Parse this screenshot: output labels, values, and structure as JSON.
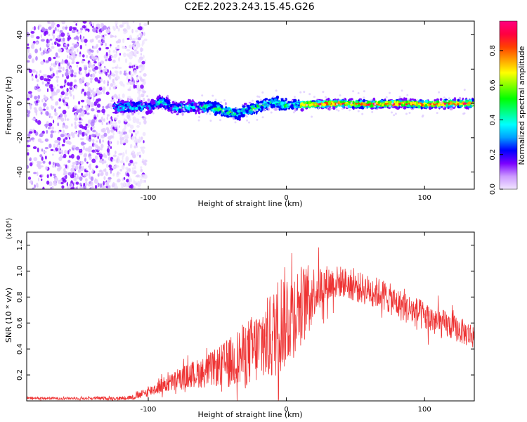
{
  "figure": {
    "title": "C2E2.2023.243.15.45.G26"
  },
  "chart_data": [
    {
      "type": "heatmap",
      "title": "C2E2.2023.243.15.45.G26",
      "xlabel": "Height of straight line (km)",
      "ylabel": "Frequency (Hz)",
      "xlim": [
        -188,
        136
      ],
      "ylim": [
        -50,
        48
      ],
      "x_ticks": [
        "-100",
        "0",
        "100"
      ],
      "y_ticks": [
        "-40",
        "-20",
        "0",
        "20",
        "40"
      ],
      "noise_region_x": [
        -188,
        -110
      ],
      "signal_start_x": -125,
      "signal_track": {
        "x": [
          -125,
          -100,
          -90,
          -80,
          -70,
          -60,
          -50,
          -40,
          -35,
          -30,
          -20,
          -10,
          0,
          20,
          40,
          60,
          80,
          100,
          120,
          136
        ],
        "y": [
          -2,
          -2,
          1,
          -3,
          -2,
          -2,
          -3,
          -5,
          -6,
          -4,
          -2,
          1,
          -1,
          -0.5,
          0,
          -0.5,
          0,
          -0.5,
          0,
          0
        ]
      },
      "colorbar": {
        "label": "Normalized spectral amplitude",
        "range": [
          0.0,
          0.97
        ],
        "ticks": [
          "0.0",
          "0.2",
          "0.4",
          "0.6",
          "0.8"
        ],
        "colormap": [
          "#f2e6ff",
          "#cc99ff",
          "#7a00ff",
          "#0000ff",
          "#00a0ff",
          "#00ffff",
          "#00ff80",
          "#00ff00",
          "#80ff00",
          "#ffff00",
          "#ffa000",
          "#ff4000",
          "#ff0040",
          "#ff0080"
        ]
      },
      "grid": false
    },
    {
      "type": "line",
      "xlabel": "Height of straight line (km)",
      "ylabel": "SNR (10 * v/v)",
      "y_multiplier": "(x10⁴)",
      "xlim": [
        -188,
        136
      ],
      "ylim": [
        0,
        1.3
      ],
      "x_ticks": [
        "-100",
        "0",
        "100"
      ],
      "y_ticks": [
        "0.2",
        "0.4",
        "0.6",
        "0.8",
        "1.0",
        "1.2"
      ],
      "series": [
        {
          "color": "#ee3333",
          "envelope": {
            "x": [
              -188,
              -150,
              -120,
              -110,
              -100,
              -90,
              -80,
              -70,
              -60,
              -50,
              -40,
              -30,
              -20,
              -10,
              -5,
              0,
              10,
              20,
              30,
              40,
              50,
              60,
              70,
              80,
              90,
              100,
              110,
              120,
              130,
              136
            ],
            "y_mean": [
              0.02,
              0.02,
              0.02,
              0.03,
              0.07,
              0.12,
              0.15,
              0.2,
              0.22,
              0.26,
              0.3,
              0.36,
              0.42,
              0.5,
              0.6,
              0.65,
              0.75,
              0.85,
              0.9,
              0.92,
              0.88,
              0.85,
              0.82,
              0.75,
              0.7,
              0.65,
              0.6,
              0.57,
              0.52,
              0.5
            ],
            "y_spread": [
              0.01,
              0.01,
              0.015,
              0.02,
              0.04,
              0.06,
              0.08,
              0.1,
              0.12,
              0.15,
              0.2,
              0.25,
              0.3,
              0.35,
              0.4,
              0.4,
              0.3,
              0.2,
              0.15,
              0.12,
              0.12,
              0.12,
              0.12,
              0.12,
              0.12,
              0.12,
              0.12,
              0.1,
              0.1,
              0.1
            ]
          }
        }
      ],
      "grid": false
    }
  ]
}
